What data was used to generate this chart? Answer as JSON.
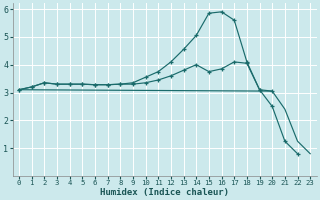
{
  "xlabel": "Humidex (Indice chaleur)",
  "xlim": [
    -0.5,
    23.5
  ],
  "ylim": [
    0,
    6.2
  ],
  "xtick_labels": [
    "0",
    "1",
    "2",
    "3",
    "4",
    "5",
    "6",
    "7",
    "8",
    "9",
    "10",
    "11",
    "12",
    "13",
    "14",
    "15",
    "16",
    "17",
    "18",
    "19",
    "20",
    "21",
    "22",
    "23"
  ],
  "xticks": [
    0,
    1,
    2,
    3,
    4,
    5,
    6,
    7,
    8,
    9,
    10,
    11,
    12,
    13,
    14,
    15,
    16,
    17,
    18,
    19,
    20,
    21,
    22,
    23
  ],
  "yticks": [
    1,
    2,
    3,
    4,
    5,
    6
  ],
  "ytick_labels": [
    "1",
    "2",
    "3",
    "4",
    "5",
    "6"
  ],
  "bg_color": "#cce9ec",
  "grid_color": "#ffffff",
  "line_color": "#1a6b6b",
  "line1_x": [
    0,
    1,
    2,
    3,
    4,
    5,
    6,
    7,
    8,
    9,
    10,
    11,
    12,
    13,
    14,
    15,
    16,
    17,
    18,
    19,
    20
  ],
  "line1_y": [
    3.1,
    3.2,
    3.35,
    3.3,
    3.3,
    3.3,
    3.28,
    3.28,
    3.3,
    3.3,
    3.35,
    3.45,
    3.6,
    3.8,
    4.0,
    3.75,
    3.85,
    4.1,
    4.05,
    3.1,
    3.05
  ],
  "line2_x": [
    0,
    1,
    2,
    3,
    4,
    5,
    6,
    7,
    8,
    9,
    10,
    11,
    12,
    13,
    14,
    15,
    16,
    17,
    18,
    19,
    20,
    21,
    22
  ],
  "line2_y": [
    3.1,
    3.2,
    3.35,
    3.3,
    3.3,
    3.3,
    3.28,
    3.28,
    3.3,
    3.35,
    3.55,
    3.75,
    4.1,
    4.55,
    5.05,
    5.85,
    5.9,
    5.6,
    4.1,
    3.1,
    2.5,
    1.25,
    0.8
  ],
  "line3_x": [
    0,
    20,
    21,
    22,
    23
  ],
  "line3_y": [
    3.1,
    3.05,
    2.4,
    1.25,
    0.8
  ]
}
